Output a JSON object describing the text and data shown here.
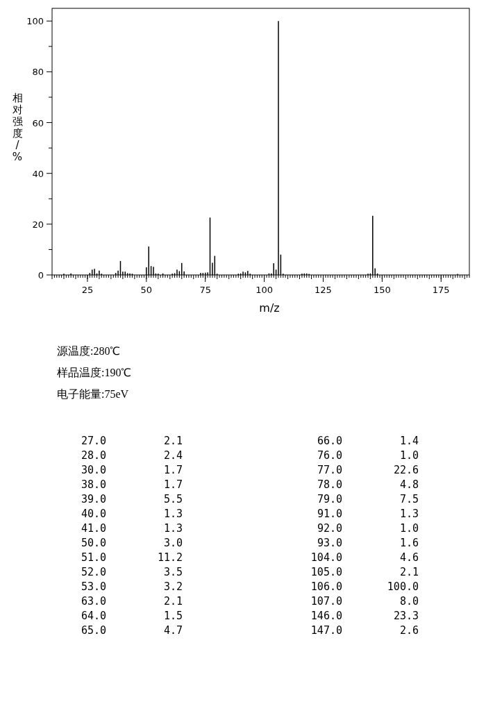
{
  "chart_data": [
    {
      "type": "bar",
      "xlabel": "m/z",
      "ylabel": "相对强度/%",
      "annotations": [
        "源温度:280℃",
        "样品温度:190℃",
        "电子能量:75eV"
      ],
      "xlim": [
        10,
        187
      ],
      "ylim": [
        0,
        105
      ],
      "xticks": [
        25,
        50,
        75,
        100,
        125,
        150,
        175
      ],
      "yticks": [
        0,
        20,
        40,
        60,
        80,
        100
      ],
      "color": "#000000",
      "x": [
        15,
        18,
        26,
        27,
        28,
        29,
        30,
        31,
        37,
        38,
        39,
        40,
        41,
        42,
        43,
        44,
        50,
        51,
        52,
        53,
        54,
        55,
        57,
        61,
        62,
        63,
        64,
        65,
        66,
        73,
        74,
        75,
        76,
        77,
        78,
        79,
        80,
        89,
        90,
        91,
        92,
        93,
        94,
        102,
        103,
        104,
        105,
        106,
        107,
        108,
        116,
        117,
        118,
        119,
        144,
        145,
        146,
        147,
        148,
        182
      ],
      "values": [
        0.5,
        0.6,
        0.8,
        2.1,
        2.4,
        0.6,
        1.7,
        0.5,
        0.8,
        1.7,
        5.5,
        1.3,
        1.3,
        0.7,
        0.6,
        0.5,
        3.0,
        11.2,
        3.5,
        3.2,
        0.6,
        0.5,
        0.6,
        0.5,
        0.7,
        2.1,
        1.5,
        4.7,
        1.4,
        0.8,
        0.8,
        0.9,
        1.0,
        22.6,
        4.8,
        7.5,
        0.5,
        0.5,
        0.6,
        1.3,
        1.0,
        1.6,
        0.5,
        0.6,
        0.6,
        4.6,
        2.1,
        100.0,
        8.0,
        0.5,
        0.5,
        0.6,
        0.6,
        0.4,
        0.5,
        0.6,
        23.3,
        2.6,
        0.6,
        0.4
      ]
    },
    {
      "type": "other",
      "annotations": [
        "27.0",
        "2.1",
        "28.0",
        "2.4",
        "30.0",
        "1.7",
        "38.0",
        "1.7",
        "39.0",
        "5.5",
        "40.0",
        "1.3",
        "41.0",
        "1.3",
        "50.0",
        "3.0",
        "51.0",
        "11.2",
        "52.0",
        "3.5",
        "53.0",
        "3.2",
        "63.0",
        "2.1",
        "64.0",
        "1.5",
        "65.0",
        "4.7",
        "66.0",
        "1.4",
        "76.0",
        "1.0",
        "77.0",
        "22.6",
        "78.0",
        "4.8",
        "79.0",
        "7.5",
        "91.0",
        "1.3",
        "92.0",
        "1.0",
        "93.0",
        "1.6",
        "104.0",
        "4.6",
        "105.0",
        "2.1",
        "106.0",
        "100.0",
        "107.0",
        "8.0",
        "146.0",
        "23.3",
        "147.0",
        "2.6"
      ]
    }
  ]
}
